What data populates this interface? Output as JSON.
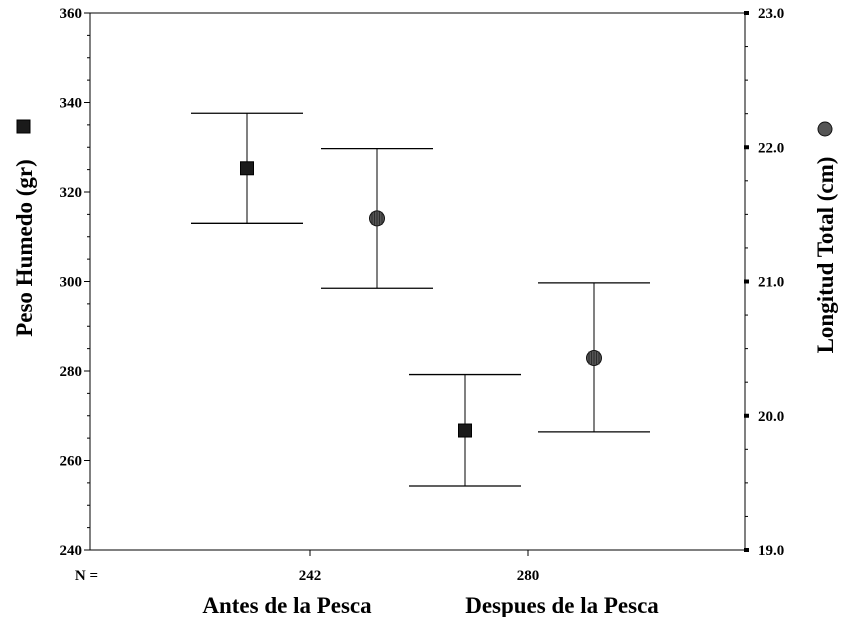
{
  "chart_data": {
    "type": "scatter",
    "subtype": "error-bar",
    "categories": [
      "Antes de la Pesca",
      "Despues de la Pesca"
    ],
    "n_label": "N =",
    "n_values": [
      "242",
      "280"
    ],
    "left_axis": {
      "label": "Peso Humedo (gr)",
      "ylim": [
        240,
        360
      ],
      "ticks": [
        240,
        260,
        280,
        300,
        320,
        340,
        360
      ],
      "tick_labels": [
        "240",
        "260",
        "280",
        "300",
        "320",
        "340",
        "360"
      ],
      "marker": "square"
    },
    "right_axis": {
      "label": "Longitud Total (cm)",
      "ylim": [
        19.0,
        23.0
      ],
      "ticks": [
        19.0,
        20.0,
        21.0,
        22.0,
        23.0
      ],
      "tick_labels": [
        "19.0",
        "20.0",
        "21.0",
        "22.0",
        "23.0"
      ],
      "marker": "circle"
    },
    "series": [
      {
        "name": "Peso Humedo (gr)",
        "axis": "left",
        "marker": "square",
        "points": [
          {
            "category": "Antes de la Pesca",
            "mean": 325.3,
            "lower": 313.0,
            "upper": 337.6
          },
          {
            "category": "Despues de la Pesca",
            "mean": 266.7,
            "lower": 254.3,
            "upper": 279.2
          }
        ]
      },
      {
        "name": "Longitud Total (cm)",
        "axis": "right",
        "marker": "circle",
        "points": [
          {
            "category": "Antes de la Pesca",
            "mean": 21.47,
            "lower": 20.95,
            "upper": 21.99
          },
          {
            "category": "Despues de la Pesca",
            "mean": 20.43,
            "lower": 19.88,
            "upper": 20.99
          }
        ]
      }
    ],
    "grid": false
  }
}
